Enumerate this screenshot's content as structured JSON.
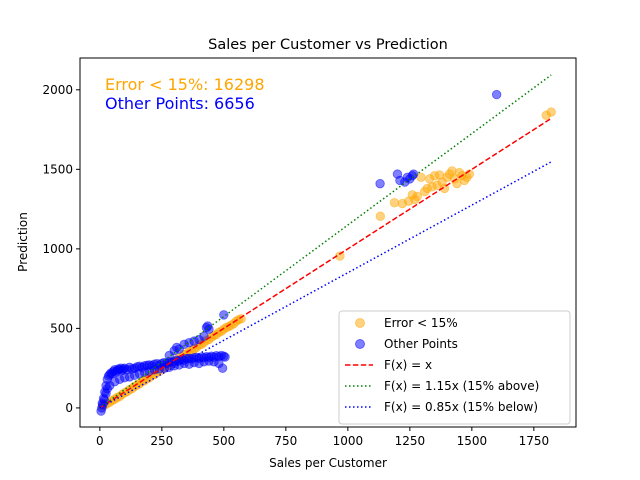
{
  "chart_data": {
    "type": "scatter",
    "title": "Sales per Customer vs Prediction",
    "xlabel": "Sales per Customer",
    "ylabel": "Prediction",
    "xlim": [
      -80,
      1920
    ],
    "ylim": [
      -120,
      2200
    ],
    "xticks": [
      0,
      250,
      500,
      750,
      1000,
      1250,
      1500,
      1750
    ],
    "yticks": [
      0,
      500,
      1000,
      1500,
      2000
    ],
    "grid": false,
    "legend_position": "lower-right",
    "annotations": [
      {
        "text": "Error < 15%: 16298",
        "color": "#ffa500"
      },
      {
        "text": "Other Points: 6656",
        "color": "#0000ff"
      }
    ],
    "series": [
      {
        "name": "Error < 15%",
        "kind": "scatter",
        "color": "#ffa500",
        "alpha": 0.5,
        "points": [
          [
            10,
            10
          ],
          [
            20,
            18
          ],
          [
            30,
            28
          ],
          [
            40,
            36
          ],
          [
            50,
            47
          ],
          [
            60,
            55
          ],
          [
            70,
            66
          ],
          [
            80,
            72
          ],
          [
            90,
            85
          ],
          [
            100,
            95
          ],
          [
            110,
            103
          ],
          [
            120,
            115
          ],
          [
            130,
            122
          ],
          [
            140,
            135
          ],
          [
            150,
            143
          ],
          [
            160,
            152
          ],
          [
            170,
            165
          ],
          [
            180,
            172
          ],
          [
            190,
            183
          ],
          [
            200,
            190
          ],
          [
            210,
            205
          ],
          [
            220,
            210
          ],
          [
            230,
            222
          ],
          [
            240,
            230
          ],
          [
            250,
            245
          ],
          [
            260,
            252
          ],
          [
            270,
            262
          ],
          [
            280,
            270
          ],
          [
            290,
            282
          ],
          [
            300,
            295
          ],
          [
            310,
            300
          ],
          [
            320,
            315
          ],
          [
            330,
            320
          ],
          [
            340,
            335
          ],
          [
            350,
            340
          ],
          [
            360,
            352
          ],
          [
            370,
            362
          ],
          [
            380,
            370
          ],
          [
            390,
            380
          ],
          [
            400,
            395
          ],
          [
            410,
            400
          ],
          [
            420,
            412
          ],
          [
            430,
            425
          ],
          [
            440,
            430
          ],
          [
            450,
            445
          ],
          [
            460,
            455
          ],
          [
            470,
            462
          ],
          [
            480,
            475
          ],
          [
            490,
            482
          ],
          [
            500,
            495
          ],
          [
            510,
            505
          ],
          [
            520,
            512
          ],
          [
            530,
            520
          ],
          [
            540,
            530
          ],
          [
            550,
            545
          ],
          [
            560,
            555
          ],
          [
            570,
            560
          ],
          [
            968,
            955
          ],
          [
            1131,
            1205
          ],
          [
            1188,
            1290
          ],
          [
            1220,
            1285
          ],
          [
            1245,
            1300
          ],
          [
            1260,
            1340
          ],
          [
            1270,
            1310
          ],
          [
            1280,
            1330
          ],
          [
            1295,
            1450
          ],
          [
            1310,
            1360
          ],
          [
            1320,
            1380
          ],
          [
            1330,
            1440
          ],
          [
            1340,
            1390
          ],
          [
            1350,
            1460
          ],
          [
            1360,
            1400
          ],
          [
            1370,
            1465
          ],
          [
            1380,
            1420
          ],
          [
            1390,
            1380
          ],
          [
            1400,
            1450
          ],
          [
            1410,
            1470
          ],
          [
            1420,
            1490
          ],
          [
            1430,
            1440
          ],
          [
            1440,
            1410
          ],
          [
            1450,
            1480
          ],
          [
            1460,
            1460
          ],
          [
            1470,
            1430
          ],
          [
            1480,
            1450
          ],
          [
            1490,
            1470
          ],
          [
            1800,
            1840
          ],
          [
            1820,
            1860
          ]
        ]
      },
      {
        "name": "Other Points",
        "kind": "scatter",
        "color": "#0000ff",
        "alpha": 0.5,
        "points": [
          [
            10,
            30
          ],
          [
            15,
            60
          ],
          [
            20,
            100
          ],
          [
            25,
            140
          ],
          [
            30,
            180
          ],
          [
            35,
            200
          ],
          [
            40,
            210
          ],
          [
            45,
            220
          ],
          [
            50,
            215
          ],
          [
            55,
            230
          ],
          [
            60,
            240
          ],
          [
            65,
            225
          ],
          [
            70,
            235
          ],
          [
            75,
            245
          ],
          [
            80,
            240
          ],
          [
            85,
            250
          ],
          [
            90,
            235
          ],
          [
            95,
            245
          ],
          [
            100,
            250
          ],
          [
            110,
            240
          ],
          [
            120,
            255
          ],
          [
            130,
            245
          ],
          [
            140,
            250
          ],
          [
            150,
            258
          ],
          [
            160,
            262
          ],
          [
            170,
            255
          ],
          [
            180,
            265
          ],
          [
            190,
            268
          ],
          [
            200,
            270
          ],
          [
            210,
            265
          ],
          [
            220,
            275
          ],
          [
            230,
            278
          ],
          [
            240,
            270
          ],
          [
            250,
            280
          ],
          [
            260,
            285
          ],
          [
            270,
            280
          ],
          [
            280,
            290
          ],
          [
            290,
            288
          ],
          [
            300,
            290
          ],
          [
            310,
            300
          ],
          [
            320,
            298
          ],
          [
            330,
            305
          ],
          [
            340,
            300
          ],
          [
            350,
            310
          ],
          [
            360,
            312
          ],
          [
            370,
            308
          ],
          [
            380,
            315
          ],
          [
            390,
            318
          ],
          [
            400,
            312
          ],
          [
            410,
            320
          ],
          [
            420,
            315
          ],
          [
            430,
            322
          ],
          [
            440,
            318
          ],
          [
            450,
            325
          ],
          [
            460,
            320
          ],
          [
            470,
            328
          ],
          [
            480,
            322
          ],
          [
            490,
            330
          ],
          [
            500,
            325
          ],
          [
            505,
            320
          ],
          [
            495,
            250
          ],
          [
            480,
            280
          ],
          [
            460,
            290
          ],
          [
            440,
            295
          ],
          [
            420,
            290
          ],
          [
            400,
            280
          ],
          [
            380,
            285
          ],
          [
            360,
            275
          ],
          [
            340,
            280
          ],
          [
            320,
            270
          ],
          [
            300,
            265
          ],
          [
            280,
            255
          ],
          [
            260,
            250
          ],
          [
            240,
            245
          ],
          [
            220,
            240
          ],
          [
            200,
            230
          ],
          [
            180,
            225
          ],
          [
            160,
            215
          ],
          [
            140,
            205
          ],
          [
            120,
            195
          ],
          [
            100,
            190
          ],
          [
            80,
            180
          ],
          [
            60,
            165
          ],
          [
            40,
            140
          ],
          [
            30,
            120
          ],
          [
            25,
            90
          ],
          [
            18,
            50
          ],
          [
            12,
            20
          ],
          [
            8,
            0
          ],
          [
            5,
            -20
          ],
          [
            280,
            330
          ],
          [
            300,
            360
          ],
          [
            310,
            380
          ],
          [
            320,
            370
          ],
          [
            340,
            400
          ],
          [
            360,
            410
          ],
          [
            380,
            420
          ],
          [
            400,
            430
          ],
          [
            420,
            450
          ],
          [
            430,
            505
          ],
          [
            435,
            515
          ],
          [
            440,
            495
          ],
          [
            500,
            585
          ],
          [
            1130,
            1410
          ],
          [
            1200,
            1470
          ],
          [
            1210,
            1430
          ],
          [
            1230,
            1420
          ],
          [
            1240,
            1450
          ],
          [
            1250,
            1440
          ],
          [
            1260,
            1460
          ],
          [
            1265,
            1470
          ],
          [
            1600,
            1970
          ]
        ]
      },
      {
        "name": "F(x) = x",
        "kind": "line",
        "style": "dashed",
        "color": "#ff0000",
        "x": [
          0,
          1820
        ],
        "y": [
          0,
          1820
        ]
      },
      {
        "name": "F(x) = 1.15x (15% above)",
        "kind": "line",
        "style": "dotted",
        "color": "#008000",
        "x": [
          0,
          1820
        ],
        "y": [
          0,
          2093
        ]
      },
      {
        "name": "F(x) = 0.85x (15% below)",
        "kind": "line",
        "style": "dotted",
        "color": "#0000ff",
        "x": [
          0,
          1820
        ],
        "y": [
          0,
          1547
        ]
      }
    ]
  }
}
